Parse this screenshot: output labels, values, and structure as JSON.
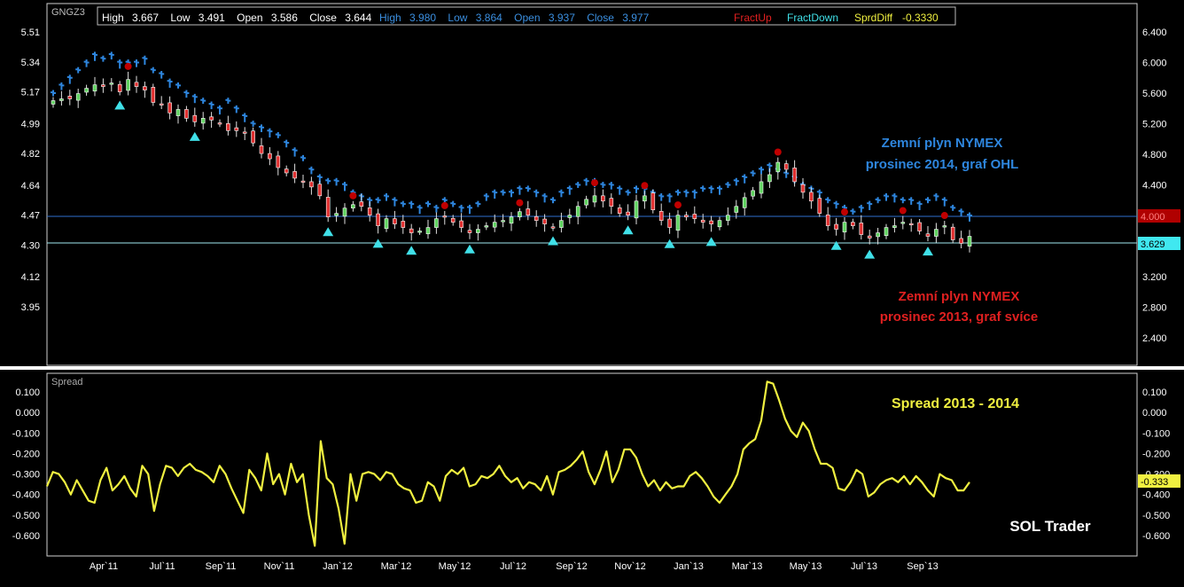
{
  "symbol": "GNGZ3",
  "info_bar": {
    "series1": {
      "high_label": "High",
      "high": "3.667",
      "low_label": "Low",
      "low": "3.491",
      "open_label": "Open",
      "open": "3.586",
      "close_label": "Close",
      "close": "3.644"
    },
    "series2": {
      "high_label": "High",
      "high": "3.980",
      "low_label": "Low",
      "low": "3.864",
      "open_label": "Open",
      "open": "3.937",
      "close_label": "Close",
      "close": "3.977"
    },
    "fract_up": "FractUp",
    "fract_down": "FractDown",
    "spread_label": "SprdDiff",
    "spread_value": "-0.3330"
  },
  "annotations": {
    "blue_line1": "Zemní plyn NYMEX",
    "blue_line2": "prosinec 2014, graf OHL",
    "red_line1": "Zemní plyn NYMEX",
    "red_line2": "prosinec 2013, graf svíce",
    "spread_title": "Spread 2013 - 2014",
    "brand": "SOL Trader"
  },
  "lower_panel_label": "Spread",
  "price_markers": {
    "blue": "4.000",
    "cyan": "3.629"
  },
  "spread_marker": "-0.333",
  "colors": {
    "background": "#000000",
    "candle_up": "#5fd35f",
    "candle_down": "#e03030",
    "ohl": "#2e86de",
    "fractal_up": "#c00000",
    "fractal_down": "#40e0e8",
    "spread": "#f0f040",
    "grid_line": "#3070d0"
  },
  "chart_data": [
    {
      "type": "candlestick",
      "title": "Zemní plyn NYMEX prosinec 2013, graf svíce",
      "y_left_ticks": [
        5.51,
        5.34,
        5.17,
        4.99,
        4.82,
        4.64,
        4.47,
        4.3,
        4.12,
        3.95
      ],
      "y_right_ticks": [
        6.4,
        6.0,
        5.6,
        5.2,
        4.8,
        4.4,
        4.0,
        3.6,
        3.2,
        2.8,
        2.4
      ],
      "x_ticks": [
        "Apr`11",
        "Jul`11",
        "Sep`11",
        "Nov`11",
        "Jan`12",
        "Mar`12",
        "May`12",
        "Jul`12",
        "Sep`12",
        "Nov`12",
        "Jan`13",
        "Mar`13",
        "May`13",
        "Jul`13",
        "Sep`13"
      ],
      "candle_closes_left_axis": [
        5.12,
        5.13,
        5.13,
        5.16,
        5.19,
        5.21,
        5.2,
        5.22,
        5.17,
        5.24,
        5.2,
        5.18,
        5.11,
        5.1,
        5.05,
        5.07,
        5.02,
        5.0,
        5.02,
        5.01,
        4.99,
        4.95,
        4.95,
        4.94,
        4.88,
        4.82,
        4.79,
        4.74,
        4.71,
        4.68,
        4.66,
        4.63,
        4.58,
        4.46,
        4.48,
        4.51,
        4.53,
        4.52,
        4.47,
        4.41,
        4.45,
        4.42,
        4.4,
        4.37,
        4.38,
        4.4,
        4.45,
        4.46,
        4.43,
        4.4,
        4.37,
        4.39,
        4.41,
        4.43,
        4.44,
        4.46,
        4.49,
        4.47,
        4.44,
        4.42,
        4.4,
        4.44,
        4.47,
        4.52,
        4.56,
        4.58,
        4.55,
        4.52,
        4.48,
        4.47,
        4.55,
        4.58,
        4.5,
        4.44,
        4.4,
        4.47,
        4.46,
        4.45,
        4.43,
        4.42,
        4.44,
        4.47,
        4.52,
        4.57,
        4.61,
        4.66,
        4.7,
        4.77,
        4.73,
        4.66,
        4.6,
        4.55,
        4.48,
        4.41,
        4.39,
        4.43,
        4.41,
        4.36,
        4.34,
        4.37,
        4.4,
        4.41,
        4.43,
        4.42,
        4.38,
        4.35,
        4.39,
        4.41,
        4.33,
        4.31,
        4.35
      ],
      "ohl_closes_right_axis": [
        5.6,
        5.7,
        5.8,
        5.9,
        6.0,
        6.1,
        6.05,
        6.1,
        6.0,
        6.0,
        6.0,
        6.05,
        5.9,
        5.85,
        5.75,
        5.7,
        5.6,
        5.55,
        5.5,
        5.45,
        5.4,
        5.5,
        5.4,
        5.3,
        5.2,
        5.15,
        5.1,
        5.05,
        4.95,
        4.85,
        4.75,
        4.6,
        4.5,
        4.45,
        4.45,
        4.4,
        4.3,
        4.25,
        4.2,
        4.2,
        4.25,
        4.2,
        4.15,
        4.15,
        4.1,
        4.15,
        4.1,
        4.2,
        4.15,
        4.1,
        4.1,
        4.15,
        4.25,
        4.3,
        4.3,
        4.3,
        4.35,
        4.35,
        4.3,
        4.25,
        4.2,
        4.3,
        4.35,
        4.4,
        4.45,
        4.45,
        4.4,
        4.4,
        4.35,
        4.3,
        4.35,
        4.35,
        4.3,
        4.25,
        4.25,
        4.3,
        4.3,
        4.3,
        4.35,
        4.35,
        4.35,
        4.4,
        4.45,
        4.5,
        4.55,
        4.6,
        4.65,
        4.6,
        4.55,
        4.5,
        4.4,
        4.35,
        4.3,
        4.2,
        4.15,
        4.1,
        4.05,
        4.1,
        4.15,
        4.2,
        4.25,
        4.25,
        4.2,
        4.2,
        4.15,
        4.2,
        4.25,
        4.2,
        4.1,
        4.05,
        4.0
      ]
    },
    {
      "type": "line",
      "title": "Spread 2013 - 2014",
      "y_ticks": [
        0.1,
        0.0,
        -0.1,
        -0.2,
        -0.3,
        -0.4,
        -0.5,
        -0.6
      ],
      "ylim": [
        -0.66,
        0.16
      ],
      "values": [
        -0.36,
        -0.29,
        -0.3,
        -0.34,
        -0.4,
        -0.33,
        -0.38,
        -0.43,
        -0.44,
        -0.33,
        -0.27,
        -0.38,
        -0.35,
        -0.31,
        -0.37,
        -0.41,
        -0.26,
        -0.3,
        -0.48,
        -0.35,
        -0.26,
        -0.27,
        -0.31,
        -0.27,
        -0.25,
        -0.28,
        -0.29,
        -0.31,
        -0.34,
        -0.26,
        -0.3,
        -0.37,
        -0.43,
        -0.49,
        -0.28,
        -0.32,
        -0.38,
        -0.2,
        -0.35,
        -0.3,
        -0.4,
        -0.25,
        -0.34,
        -0.3,
        -0.5,
        -0.65,
        -0.14,
        -0.32,
        -0.35,
        -0.47,
        -0.64,
        -0.3,
        -0.43,
        -0.3,
        -0.29,
        -0.3,
        -0.33,
        -0.29,
        -0.3,
        -0.35,
        -0.37,
        -0.38,
        -0.44,
        -0.43,
        -0.34,
        -0.36,
        -0.43,
        -0.31,
        -0.28,
        -0.3,
        -0.27,
        -0.36,
        -0.35,
        -0.31,
        -0.32,
        -0.3,
        -0.26,
        -0.31,
        -0.34,
        -0.32,
        -0.37,
        -0.34,
        -0.35,
        -0.38,
        -0.31,
        -0.4,
        -0.29,
        -0.28,
        -0.26,
        -0.23,
        -0.19,
        -0.29,
        -0.35,
        -0.28,
        -0.19,
        -0.34,
        -0.28,
        -0.18,
        -0.18,
        -0.22,
        -0.3,
        -0.36,
        -0.33,
        -0.38,
        -0.34,
        -0.37,
        -0.36,
        -0.36,
        -0.31,
        -0.29,
        -0.32,
        -0.36,
        -0.41,
        -0.44,
        -0.4,
        -0.36,
        -0.3,
        -0.18,
        -0.15,
        -0.13,
        -0.04,
        0.15,
        0.14,
        0.06,
        -0.03,
        -0.09,
        -0.12,
        -0.05,
        -0.09,
        -0.18,
        -0.25,
        -0.25,
        -0.27,
        -0.37,
        -0.38,
        -0.34,
        -0.28,
        -0.3,
        -0.41,
        -0.39,
        -0.35,
        -0.33,
        -0.32,
        -0.34,
        -0.31,
        -0.35,
        -0.31,
        -0.34,
        -0.38,
        -0.41,
        -0.3,
        -0.32,
        -0.33,
        -0.38,
        -0.38,
        -0.34
      ]
    }
  ]
}
